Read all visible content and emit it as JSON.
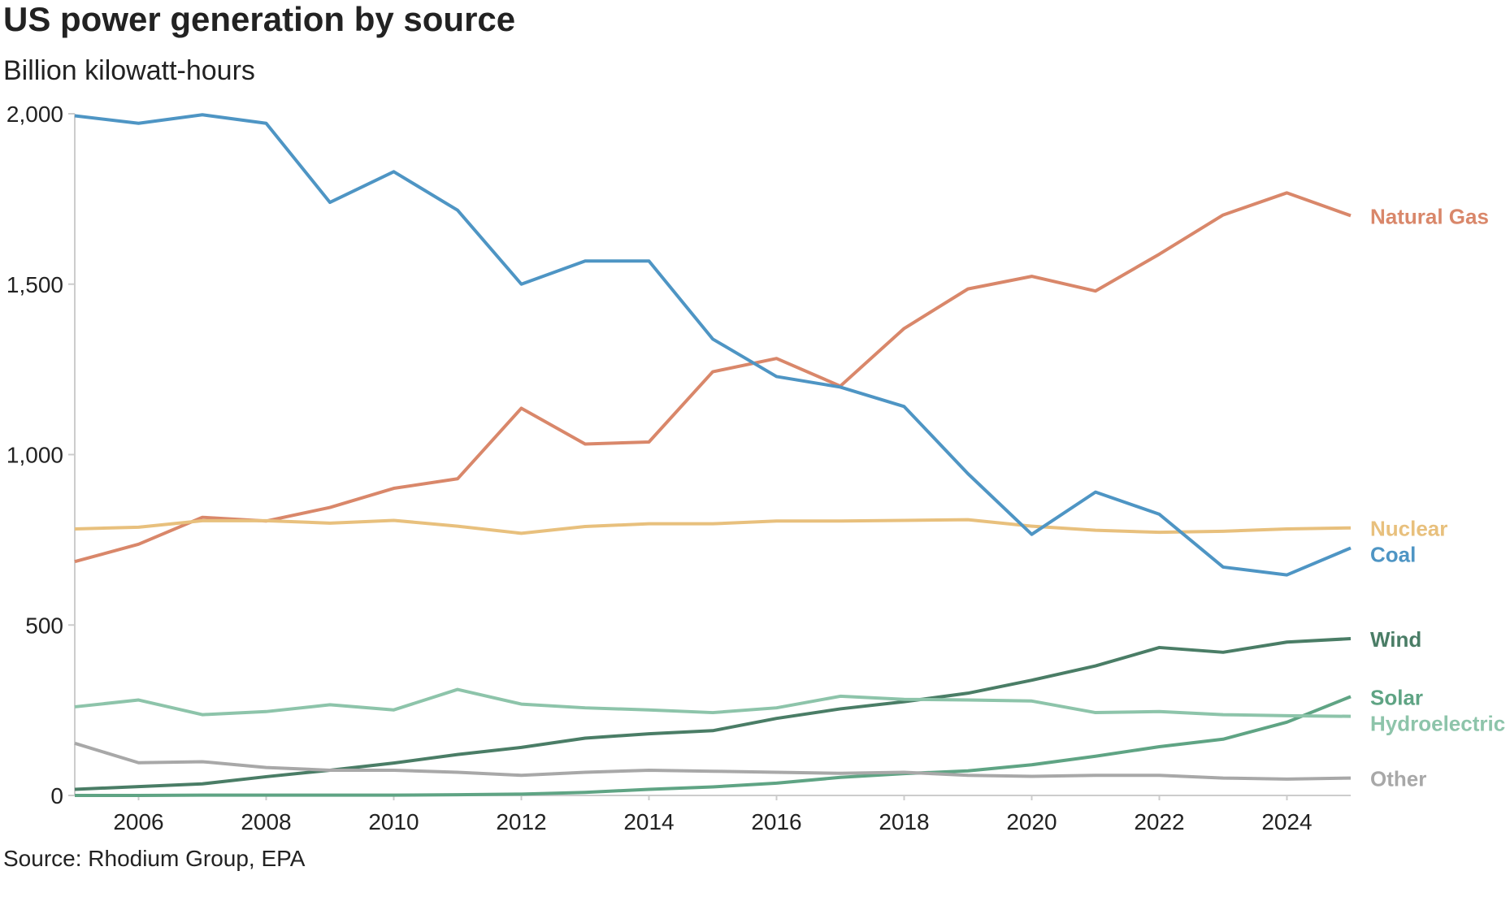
{
  "chart_data": {
    "type": "line",
    "title": "US power generation by source",
    "subtitle": "Billion kilowatt-hours",
    "source": "Source: Rhodium Group, EPA",
    "x": [
      2005,
      2006,
      2007,
      2008,
      2009,
      2010,
      2011,
      2012,
      2013,
      2014,
      2015,
      2016,
      2017,
      2018,
      2019,
      2020,
      2021,
      2022,
      2023,
      2024,
      2025
    ],
    "xlim": [
      2005,
      2025
    ],
    "xticks": [
      2006,
      2008,
      2010,
      2012,
      2014,
      2016,
      2018,
      2020,
      2022,
      2024
    ],
    "ylim": [
      0,
      2000
    ],
    "yticks": [
      0,
      500,
      {
        "value": 1000,
        "label": "1,000"
      },
      {
        "value": 1500,
        "label": "1,500"
      },
      {
        "value": 2000,
        "label": "2,000"
      }
    ],
    "series": [
      {
        "name": "Natural Gas",
        "color": "#d9876a",
        "values": [
          686,
          737,
          816,
          805,
          845,
          901,
          929,
          1136,
          1031,
          1037,
          1243,
          1282,
          1201,
          1370,
          1486,
          1523,
          1480,
          1588,
          1703,
          1768,
          1701
        ]
      },
      {
        "name": "Nuclear",
        "color": "#e8c07d",
        "values": [
          782,
          787,
          806,
          806,
          799,
          807,
          790,
          769,
          789,
          797,
          797,
          805,
          805,
          807,
          809,
          790,
          778,
          772,
          775,
          782,
          785
        ]
      },
      {
        "name": "Coal",
        "color": "#4e95c4",
        "values": [
          1994,
          1972,
          1997,
          1972,
          1740,
          1830,
          1717,
          1500,
          1568,
          1568,
          1339,
          1229,
          1198,
          1141,
          944,
          766,
          890,
          825,
          670,
          647,
          726
        ]
      },
      {
        "name": "Wind",
        "color": "#4a7d66",
        "values": [
          18,
          26,
          34,
          55,
          74,
          95,
          120,
          141,
          168,
          181,
          190,
          226,
          254,
          275,
          300,
          338,
          380,
          434,
          420,
          450,
          460
        ]
      },
      {
        "name": "Solar",
        "color": "#5fa484",
        "values": [
          0,
          0,
          1,
          1,
          1,
          1,
          2,
          4,
          9,
          18,
          25,
          36,
          53,
          64,
          72,
          90,
          115,
          143,
          165,
          215,
          290
        ]
      },
      {
        "name": "Hydroelectric",
        "color": "#8dc4aa",
        "values": [
          260,
          280,
          237,
          246,
          266,
          251,
          311,
          268,
          257,
          251,
          243,
          257,
          291,
          282,
          280,
          277,
          243,
          246,
          237,
          234,
          232
        ]
      },
      {
        "name": "Other",
        "color": "#a8a8a8",
        "values": [
          153,
          96,
          99,
          82,
          74,
          74,
          68,
          59,
          68,
          74,
          71,
          68,
          65,
          68,
          59,
          56,
          59,
          59,
          51,
          48,
          51
        ]
      }
    ]
  }
}
